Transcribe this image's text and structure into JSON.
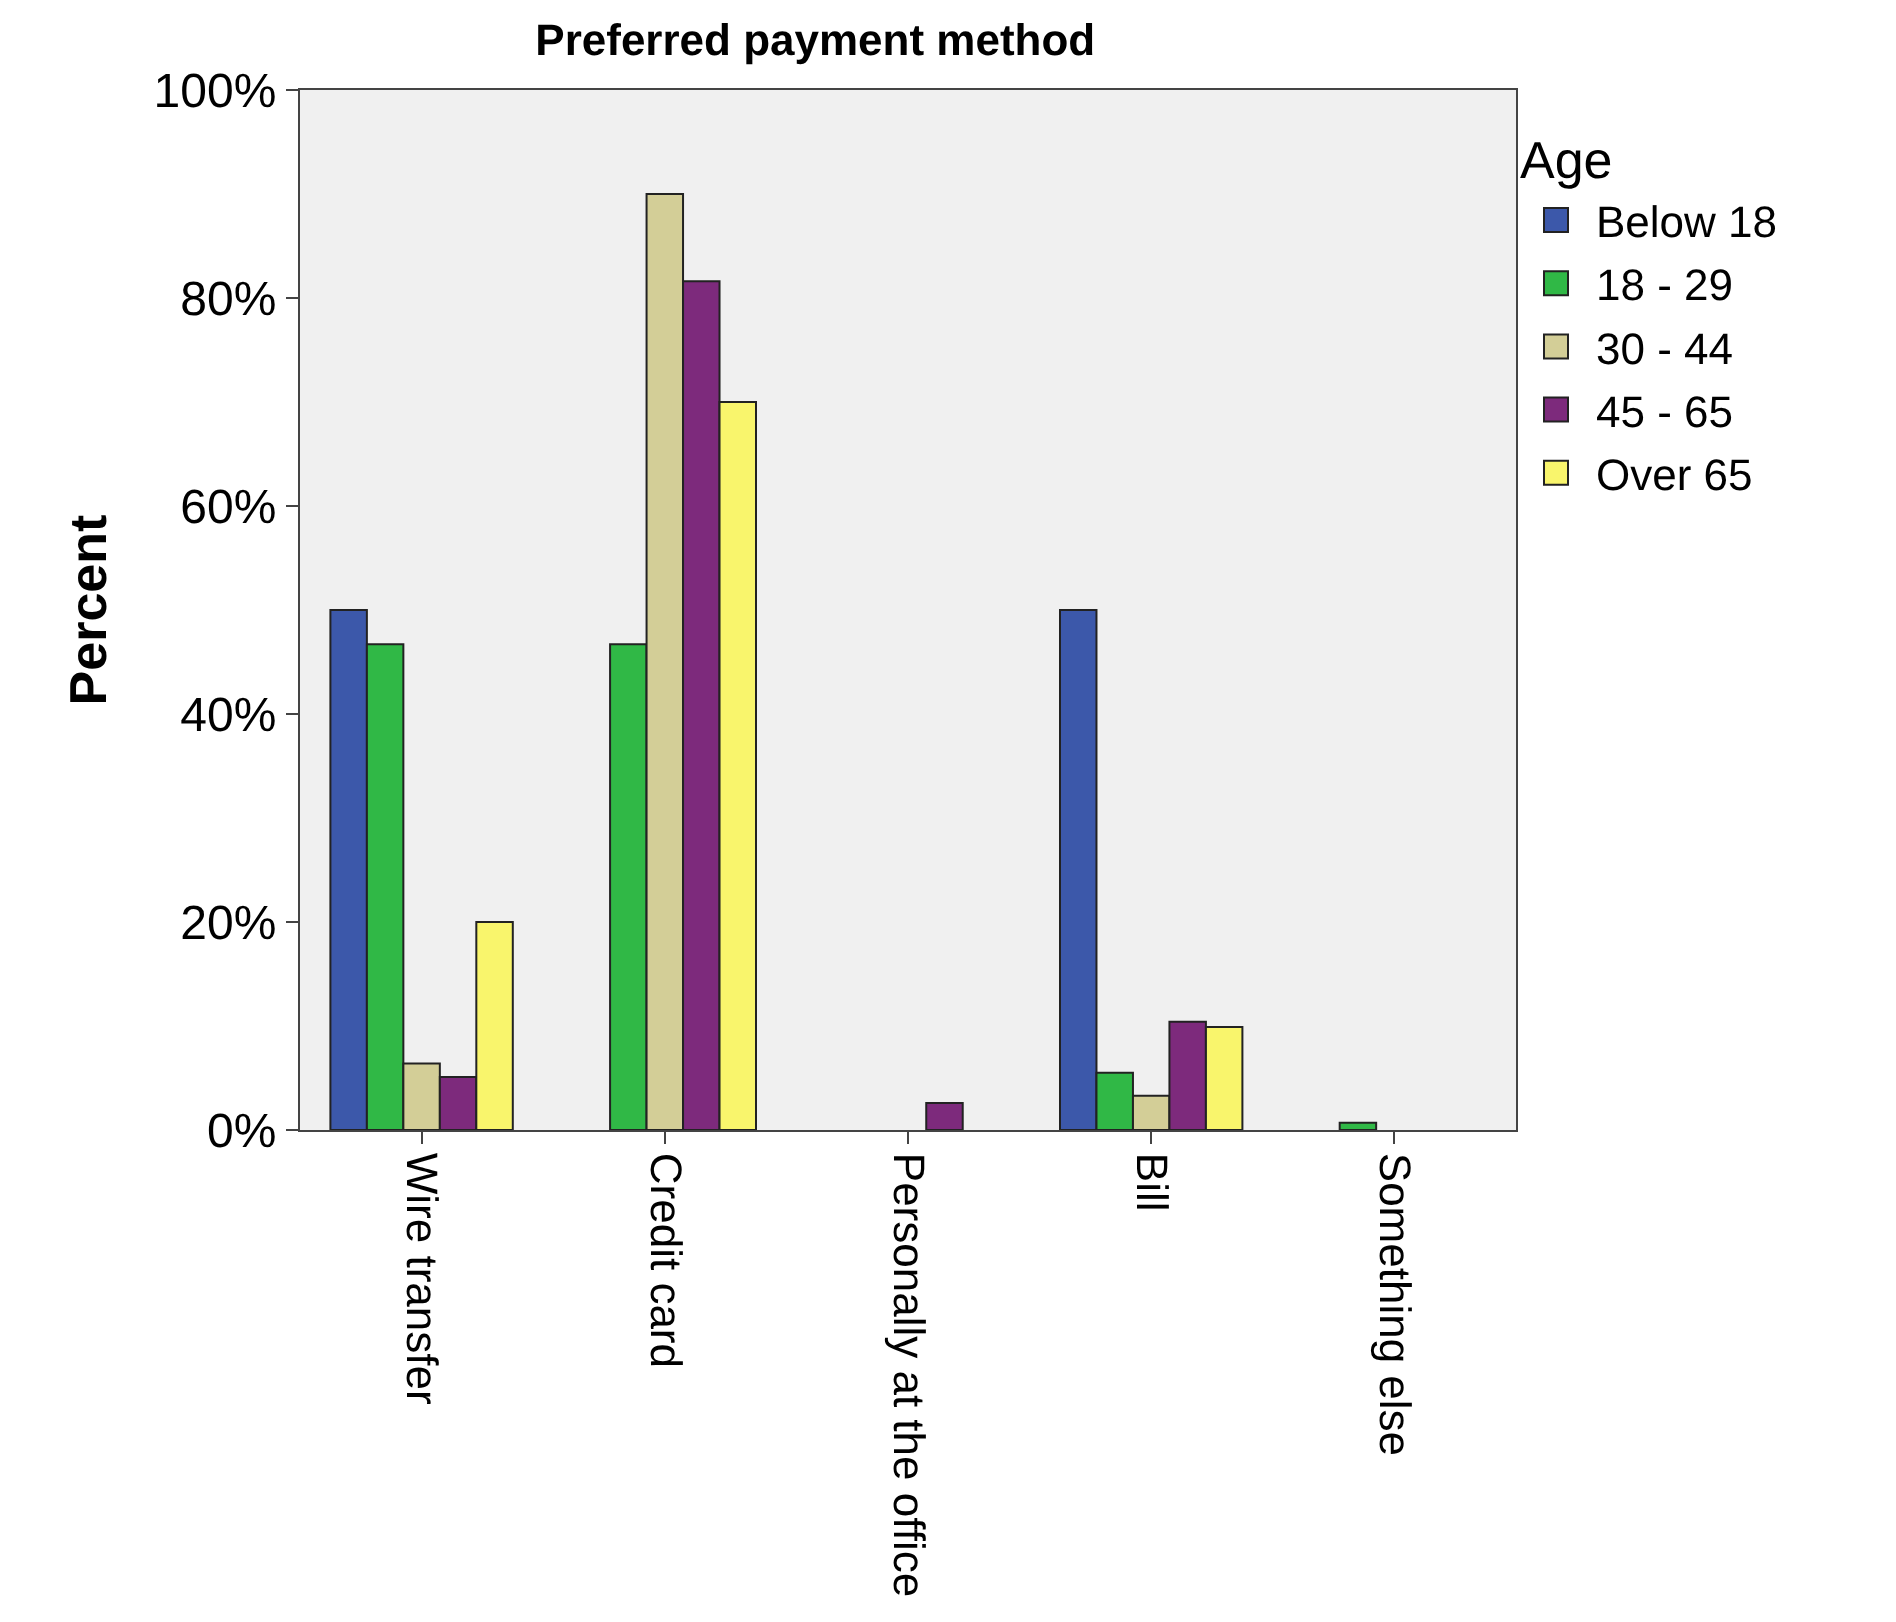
{
  "chart_data": {
    "type": "bar",
    "title": "Preferred payment method",
    "ylabel": "Percent",
    "legend_title": "Age",
    "legend": "right",
    "grid": false,
    "categories": [
      "Wire transfer",
      "Credit card",
      "Personally at the office",
      "Bill",
      "Something else"
    ],
    "ylim": [
      0,
      100
    ],
    "yticks": [
      {
        "value": 0,
        "label": "0%"
      },
      {
        "value": 20,
        "label": "20%"
      },
      {
        "value": 40,
        "label": "40%"
      },
      {
        "value": 60,
        "label": "60%"
      },
      {
        "value": 80,
        "label": "80%"
      },
      {
        "value": 100,
        "label": "100%"
      }
    ],
    "series": [
      {
        "name": "Below 18",
        "color": "#3c58aa",
        "values": [
          50,
          0,
          0,
          50,
          0
        ]
      },
      {
        "name": "18 - 29",
        "color": "#30b846",
        "values": [
          46.7,
          46.7,
          0,
          5.5,
          0.7
        ]
      },
      {
        "name": "30 - 44",
        "color": "#d3ce97",
        "values": [
          6.4,
          90,
          0,
          3.3,
          0
        ]
      },
      {
        "name": "45 - 65",
        "color": "#7d2a7c",
        "values": [
          5.1,
          81.6,
          2.6,
          10.4,
          0
        ]
      },
      {
        "name": "Over 65",
        "color": "#f9f56c",
        "values": [
          20,
          70,
          0,
          9.9,
          0
        ]
      }
    ]
  }
}
